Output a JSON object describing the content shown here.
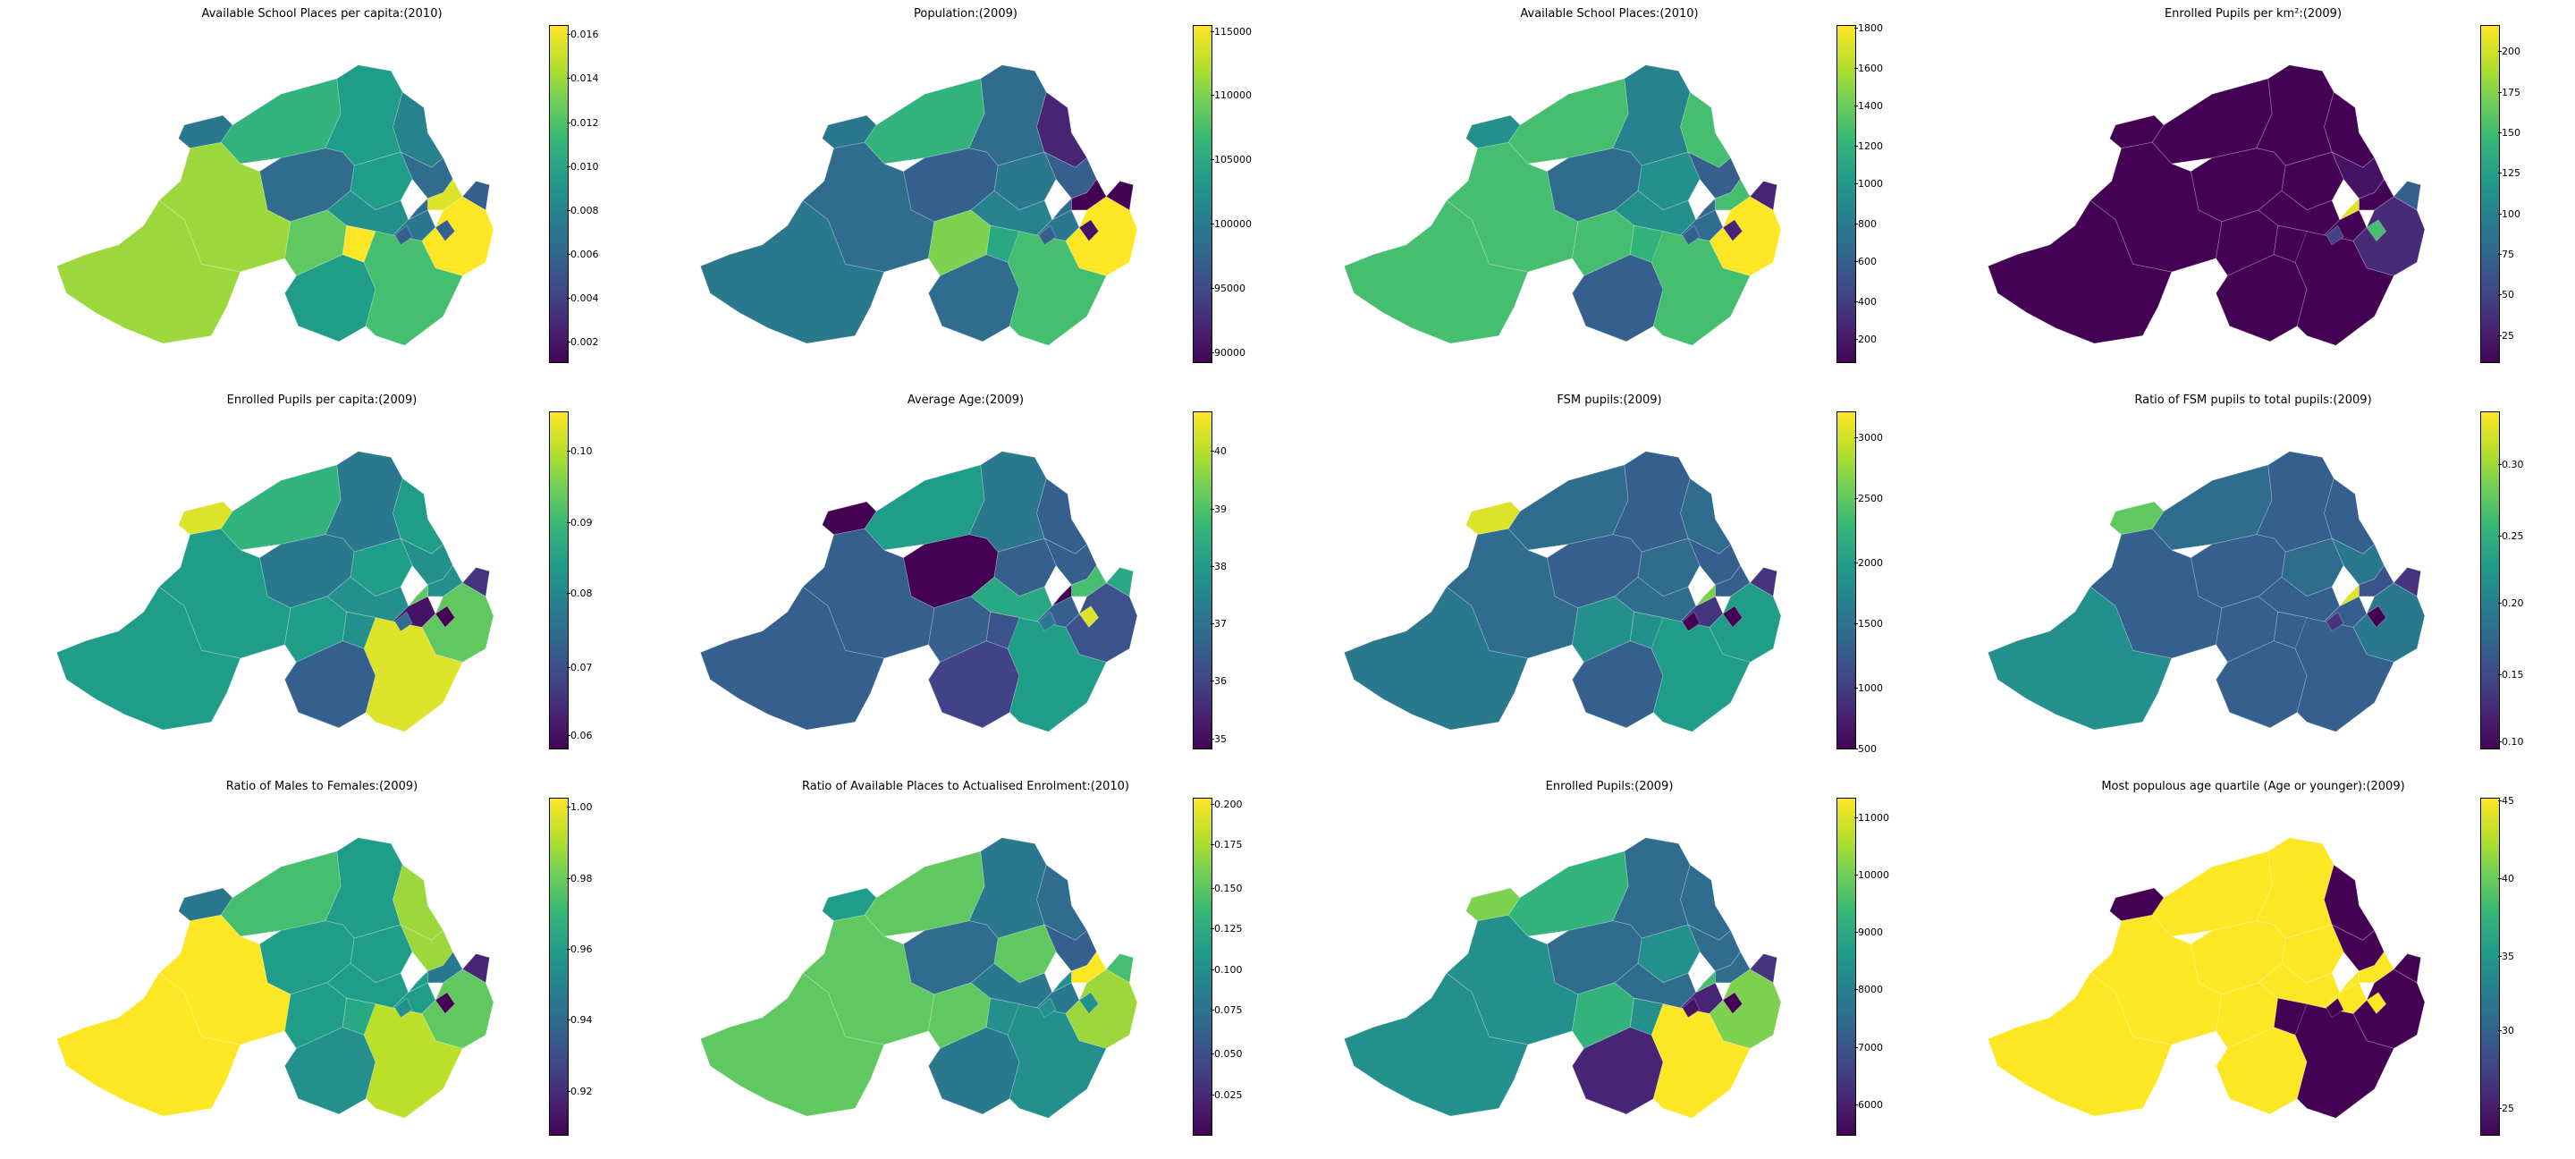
{
  "palette": [
    "#440154",
    "#482878",
    "#3e4a89",
    "#31688e",
    "#26828e",
    "#1f9e89",
    "#35b779",
    "#6ece58",
    "#b5de2b",
    "#fde725"
  ],
  "panels": [
    {
      "title": "Available School Places per capita:(2010)",
      "ticks": [
        "0.016",
        "0.014",
        "0.012",
        "0.010",
        "0.008",
        "0.006",
        "0.004",
        "0.002"
      ],
      "tick_fracs": [
        0.97,
        0.84,
        0.71,
        0.58,
        0.45,
        0.32,
        0.19,
        0.06
      ],
      "regions": [
        0.4,
        0.65,
        0.55,
        0.45,
        0.35,
        0.35,
        0.55,
        0.85,
        0.85,
        0.75,
        0.5,
        0.4,
        1.0,
        0.55,
        0.7,
        0.3,
        0.95,
        0.3,
        0.35,
        0.3,
        1.0
      ]
    },
    {
      "title": "Population:(2009)",
      "ticks": [
        "115000",
        "110000",
        "105000",
        "100000",
        "95000",
        "90000"
      ],
      "tick_fracs": [
        0.98,
        0.79,
        0.6,
        0.41,
        0.22,
        0.03
      ],
      "regions": [
        0.4,
        0.65,
        0.35,
        0.1,
        0.3,
        0.3,
        0.4,
        0.35,
        0.4,
        0.8,
        0.45,
        0.4,
        1.0,
        0.35,
        0.7,
        0.05,
        0.0,
        0.0,
        0.35,
        0.3,
        0.6
      ]
    },
    {
      "title": "Available School Places:(2010)",
      "ticks": [
        "1800",
        "1600",
        "1400",
        "1200",
        "1000",
        "800",
        "600",
        "400",
        "200"
      ],
      "tick_fracs": [
        0.99,
        0.87,
        0.76,
        0.64,
        0.53,
        0.41,
        0.3,
        0.18,
        0.07
      ],
      "regions": [
        0.5,
        0.7,
        0.45,
        0.7,
        0.3,
        0.35,
        0.5,
        0.7,
        0.7,
        0.7,
        0.5,
        0.35,
        1.0,
        0.3,
        0.7,
        0.1,
        0.7,
        0.1,
        0.35,
        0.3,
        0.65
      ]
    },
    {
      "title": "Enrolled Pupils per km²:(2009)",
      "ticks": [
        "200",
        "175",
        "150",
        "125",
        "100",
        "75",
        "50",
        "25"
      ],
      "tick_fracs": [
        0.92,
        0.8,
        0.68,
        0.56,
        0.44,
        0.32,
        0.2,
        0.08
      ],
      "regions": [
        0.0,
        0.0,
        0.0,
        0.0,
        0.05,
        0.0,
        0.0,
        0.0,
        0.0,
        0.0,
        0.0,
        0.0,
        0.12,
        0.0,
        0.0,
        0.7,
        0.0,
        0.3,
        0.95,
        0.2,
        0.0
      ]
    },
    {
      "title": "Enrolled Pupils per capita:(2009)",
      "ticks": [
        "0.10",
        "0.09",
        "0.08",
        "0.07",
        "0.06"
      ],
      "tick_fracs": [
        0.88,
        0.67,
        0.46,
        0.24,
        0.04
      ],
      "regions": [
        0.95,
        0.65,
        0.4,
        0.55,
        0.5,
        0.4,
        0.55,
        0.55,
        0.55,
        0.55,
        0.5,
        0.05,
        0.75,
        0.3,
        0.95,
        0.0,
        0.5,
        0.15,
        0.75,
        0.35,
        0.5
      ]
    },
    {
      "title": "Average Age:(2009)",
      "ticks": [
        "40",
        "39",
        "38",
        "37",
        "36",
        "35"
      ],
      "tick_fracs": [
        0.88,
        0.71,
        0.54,
        0.37,
        0.2,
        0.03
      ],
      "regions": [
        0.0,
        0.55,
        0.4,
        0.3,
        0.3,
        0.0,
        0.3,
        0.3,
        0.3,
        0.3,
        0.6,
        0.3,
        0.25,
        0.2,
        0.55,
        0.95,
        0.7,
        0.6,
        0.0,
        0.4,
        0.25
      ]
    },
    {
      "title": "FSM pupils:(2009)",
      "ticks": [
        "3000",
        "2500",
        "2000",
        "1500",
        "1000",
        "500"
      ],
      "tick_fracs": [
        0.92,
        0.74,
        0.55,
        0.37,
        0.18,
        0.0
      ],
      "regions": [
        0.95,
        0.35,
        0.3,
        0.35,
        0.3,
        0.3,
        0.35,
        0.35,
        0.4,
        0.5,
        0.35,
        0.15,
        0.55,
        0.3,
        0.55,
        0.0,
        0.3,
        0.15,
        0.8,
        0.0,
        0.5
      ]
    },
    {
      "title": "Ratio of FSM pupils to total pupils:(2009)",
      "ticks": [
        "0.30",
        "0.25",
        "0.20",
        "0.15",
        "0.10"
      ],
      "tick_fracs": [
        0.84,
        0.63,
        0.43,
        0.22,
        0.02
      ],
      "regions": [
        0.75,
        0.35,
        0.3,
        0.3,
        0.4,
        0.3,
        0.35,
        0.3,
        0.5,
        0.3,
        0.3,
        0.3,
        0.4,
        0.3,
        0.3,
        0.0,
        0.25,
        0.15,
        0.95,
        0.15,
        0.3
      ]
    },
    {
      "title": "Ratio of Males to Females:(2009)",
      "ticks": [
        "1.00",
        "0.98",
        "0.96",
        "0.94",
        "0.92"
      ],
      "tick_fracs": [
        0.97,
        0.76,
        0.55,
        0.34,
        0.13
      ],
      "regions": [
        0.4,
        0.7,
        0.55,
        0.85,
        0.85,
        0.55,
        0.55,
        1.0,
        1.0,
        0.55,
        0.55,
        0.55,
        0.75,
        0.5,
        0.9,
        0.0,
        0.4,
        0.1,
        0.55,
        0.5,
        0.6
      ]
    },
    {
      "title": "Ratio of Available Places to Actualised Enrolment:(2010)",
      "ticks": [
        "0.200",
        "0.175",
        "0.150",
        "0.125",
        "0.100",
        "0.075",
        "0.050",
        "0.025"
      ],
      "tick_fracs": [
        0.98,
        0.86,
        0.73,
        0.61,
        0.49,
        0.37,
        0.24,
        0.12
      ],
      "regions": [
        0.55,
        0.75,
        0.4,
        0.35,
        0.3,
        0.35,
        0.75,
        0.75,
        0.75,
        0.75,
        0.4,
        0.4,
        0.85,
        0.4,
        0.5,
        0.5,
        1.0,
        0.7,
        0.5,
        0.5,
        0.5
      ]
    },
    {
      "title": "Enrolled Pupils:(2009)",
      "ticks": [
        "11000",
        "10000",
        "9000",
        "8000",
        "7000",
        "6000"
      ],
      "tick_fracs": [
        0.94,
        0.77,
        0.6,
        0.43,
        0.26,
        0.09
      ],
      "regions": [
        0.8,
        0.65,
        0.35,
        0.35,
        0.35,
        0.35,
        0.5,
        0.5,
        0.5,
        0.65,
        0.35,
        0.1,
        0.8,
        0.1,
        1.0,
        0.0,
        0.35,
        0.15,
        0.7,
        0.05,
        0.5
      ]
    },
    {
      "title": "Most populous age quartile (Age or younger):(2009)",
      "ticks": [
        "45",
        "40",
        "35",
        "30",
        "25"
      ],
      "tick_fracs": [
        0.99,
        0.76,
        0.53,
        0.31,
        0.08
      ],
      "regions": [
        0.0,
        1.0,
        1.0,
        0.0,
        0.0,
        1.0,
        1.0,
        1.0,
        1.0,
        1.0,
        1.0,
        1.0,
        0.0,
        1.0,
        0.0,
        1.0,
        1.0,
        0.0,
        1.0,
        0.0,
        0.0
      ]
    }
  ]
}
